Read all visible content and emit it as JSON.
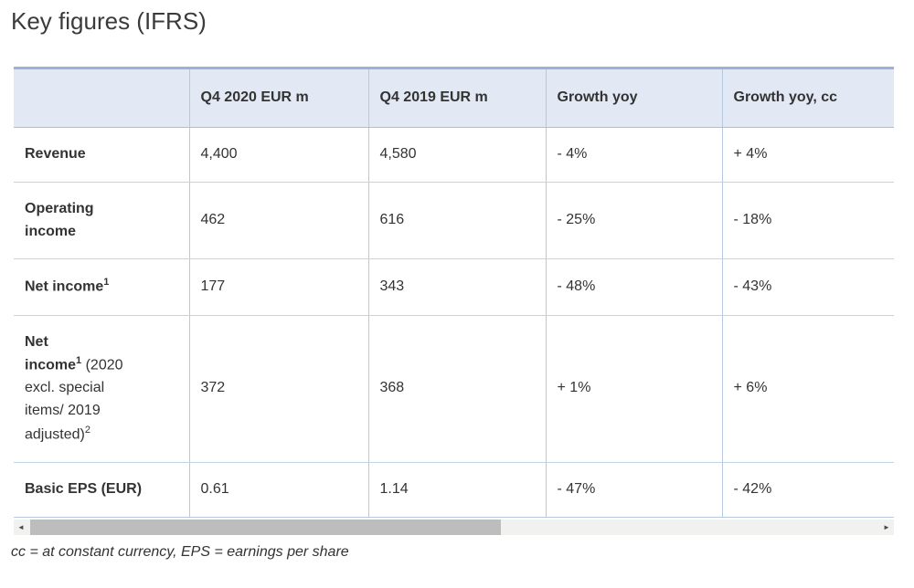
{
  "title": "Key figures (IFRS)",
  "footnote": "cc = at constant currency, EPS = earnings per share",
  "table": {
    "headers": [
      "",
      "Q4 2020 EUR m",
      "Q4 2019 EUR m",
      "Growth yoy",
      "Growth yoy, cc"
    ],
    "rows": [
      {
        "label": [
          {
            "text": "Revenue",
            "bold": true
          }
        ],
        "values": [
          "4,400",
          "4,580",
          "- 4%",
          "+ 4%"
        ]
      },
      {
        "label": [
          {
            "text": "Operating income",
            "bold": true
          }
        ],
        "values": [
          "462",
          "616",
          "- 25%",
          "- 18%"
        ]
      },
      {
        "label": [
          {
            "text": "Net income",
            "bold": true
          },
          {
            "text": "1",
            "bold": true,
            "sup": true
          }
        ],
        "values": [
          "177",
          "343",
          "- 48%",
          "- 43%"
        ]
      },
      {
        "label": [
          {
            "text": "Net\nincome",
            "bold": true
          },
          {
            "text": "1",
            "bold": true,
            "sup": true
          },
          {
            "text": " (2020 excl. special items/ 2019 adjusted)"
          },
          {
            "text": "2",
            "sup": true
          }
        ],
        "values": [
          "372",
          "368",
          "+ 1%",
          "+ 6%"
        ]
      },
      {
        "label": [
          {
            "text": "Basic EPS (EUR)",
            "bold": true
          }
        ],
        "values": [
          "0.61",
          "1.14",
          "- 47%",
          "- 42%"
        ]
      }
    ]
  },
  "scrollbar": {
    "left_arrow": "◄",
    "right_arrow": "►"
  },
  "colors": {
    "header_bg": "#e2e9f4",
    "table_top_border": "#9cb2d2",
    "grid_line": "#b6c9e1",
    "row_line": "#c3d4e8",
    "text": "#333333",
    "scrollbar_track": "#f1f1f0",
    "scrollbar_thumb": "#bdbdbd"
  }
}
